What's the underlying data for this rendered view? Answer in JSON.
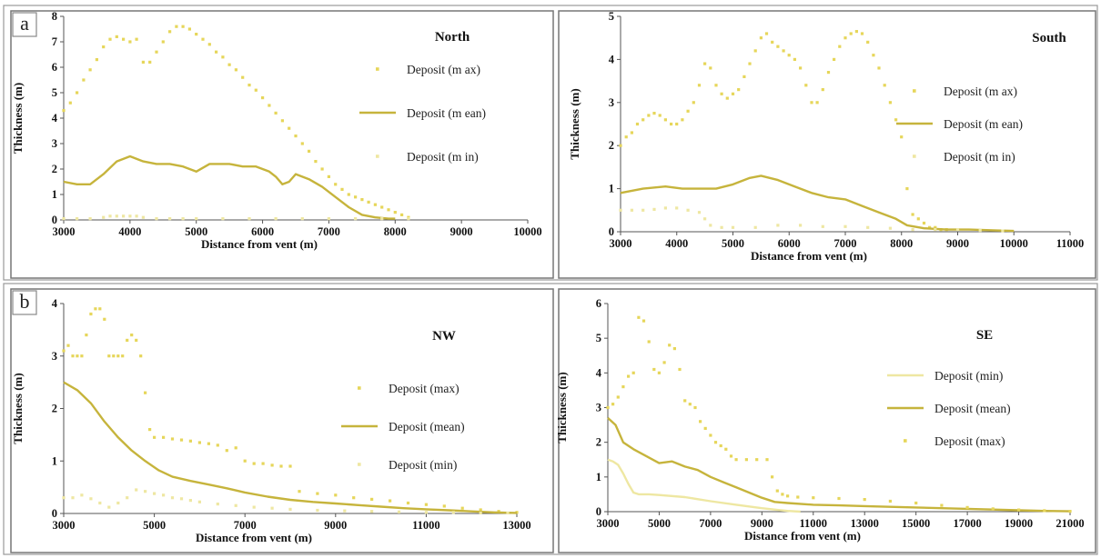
{
  "figure": {
    "labels": [
      "a",
      "b"
    ]
  },
  "colors": {
    "max": "#e6d65a",
    "mean": "#c6b43c",
    "min": "#eee7a2",
    "frame": "#777777"
  },
  "chart_data": [
    {
      "type": "line",
      "title": "North",
      "xlabel": "Distance from vent (m)",
      "ylabel": "Thickness (m)",
      "xlim": [
        3000,
        10000
      ],
      "ylim": [
        0,
        8
      ],
      "xticks": [
        3000,
        4000,
        5000,
        6000,
        7000,
        8000,
        9000,
        10000
      ],
      "yticks": [
        0,
        1,
        2,
        3,
        4,
        5,
        6,
        7,
        8
      ],
      "grid": false,
      "legend": "right",
      "series": [
        {
          "name": "Deposit (m ax)",
          "style": "dots",
          "key": "max",
          "x": [
            3000,
            3100,
            3200,
            3300,
            3400,
            3500,
            3600,
            3700,
            3800,
            3900,
            4000,
            4100,
            4200,
            4300,
            4400,
            4500,
            4600,
            4700,
            4800,
            4900,
            5000,
            5100,
            5200,
            5300,
            5400,
            5500,
            5600,
            5700,
            5800,
            5900,
            6000,
            6100,
            6200,
            6300,
            6400,
            6500,
            6600,
            6700,
            6800,
            6900,
            7000,
            7100,
            7200,
            7300,
            7400,
            7500,
            7600,
            7700,
            7800,
            7900,
            8000,
            8100,
            8200
          ],
          "y": [
            4.3,
            4.6,
            5.0,
            5.5,
            5.9,
            6.3,
            6.8,
            7.1,
            7.2,
            7.1,
            7.0,
            7.1,
            6.2,
            6.2,
            6.6,
            7.0,
            7.4,
            7.6,
            7.6,
            7.5,
            7.3,
            7.1,
            6.9,
            6.6,
            6.4,
            6.1,
            5.9,
            5.6,
            5.3,
            5.1,
            4.8,
            4.5,
            4.2,
            3.9,
            3.6,
            3.3,
            3.0,
            2.7,
            2.3,
            2.0,
            1.7,
            1.4,
            1.2,
            1.0,
            0.9,
            0.8,
            0.7,
            0.6,
            0.5,
            0.4,
            0.3,
            0.2,
            0.1
          ]
        },
        {
          "name": "Deposit (m ean)",
          "style": "line",
          "key": "mean",
          "x": [
            3000,
            3200,
            3400,
            3600,
            3800,
            4000,
            4200,
            4400,
            4600,
            4800,
            5000,
            5200,
            5300,
            5500,
            5700,
            5900,
            6100,
            6200,
            6300,
            6400,
            6500,
            6700,
            6900,
            7100,
            7300,
            7500,
            7700,
            7900,
            8000
          ],
          "y": [
            1.5,
            1.4,
            1.4,
            1.8,
            2.3,
            2.5,
            2.3,
            2.2,
            2.2,
            2.1,
            1.9,
            2.2,
            2.2,
            2.2,
            2.1,
            2.1,
            1.9,
            1.7,
            1.4,
            1.5,
            1.8,
            1.6,
            1.3,
            0.9,
            0.5,
            0.2,
            0.1,
            0.05,
            0.05
          ]
        },
        {
          "name": "Deposit (m in)",
          "style": "dots",
          "key": "min",
          "x": [
            3000,
            3200,
            3400,
            3600,
            3700,
            3800,
            3900,
            4000,
            4100,
            4200,
            4400,
            4600,
            4800,
            5000,
            5400,
            5800,
            6200,
            6600,
            7000,
            7400,
            7800,
            8200
          ],
          "y": [
            0.05,
            0.05,
            0.05,
            0.1,
            0.15,
            0.15,
            0.15,
            0.15,
            0.15,
            0.1,
            0.05,
            0.05,
            0.05,
            0.05,
            0.05,
            0.05,
            0.05,
            0.05,
            0.05,
            0.05,
            0.05,
            0.05
          ]
        }
      ]
    },
    {
      "type": "line",
      "title": "South",
      "xlabel": "Distance from vent (m)",
      "ylabel": "Thickness (m)",
      "xlim": [
        3000,
        11000
      ],
      "ylim": [
        0,
        5
      ],
      "xticks": [
        3000,
        4000,
        5000,
        6000,
        7000,
        8000,
        9000,
        10000,
        11000
      ],
      "yticks": [
        0,
        1,
        2,
        3,
        4,
        5
      ],
      "grid": false,
      "legend": "right",
      "series": [
        {
          "name": "Deposit (m ax)",
          "style": "dots",
          "key": "max",
          "x": [
            3000,
            3100,
            3200,
            3300,
            3400,
            3500,
            3600,
            3700,
            3800,
            3900,
            4000,
            4100,
            4200,
            4300,
            4400,
            4500,
            4600,
            4700,
            4800,
            4900,
            5000,
            5100,
            5200,
            5300,
            5400,
            5500,
            5600,
            5700,
            5800,
            5900,
            6000,
            6100,
            6200,
            6300,
            6400,
            6500,
            6600,
            6700,
            6800,
            6900,
            7000,
            7100,
            7200,
            7300,
            7400,
            7500,
            7600,
            7700,
            7800,
            7900,
            8000,
            8100,
            8200,
            8300,
            8400,
            8500,
            8600,
            8700,
            8800
          ],
          "y": [
            2.0,
            2.2,
            2.3,
            2.5,
            2.6,
            2.7,
            2.75,
            2.7,
            2.6,
            2.5,
            2.5,
            2.6,
            2.8,
            3.0,
            3.4,
            3.9,
            3.8,
            3.4,
            3.2,
            3.1,
            3.2,
            3.3,
            3.6,
            3.9,
            4.2,
            4.5,
            4.6,
            4.4,
            4.3,
            4.2,
            4.1,
            4.0,
            3.8,
            3.4,
            3.0,
            3.0,
            3.3,
            3.7,
            4.0,
            4.3,
            4.5,
            4.6,
            4.65,
            4.6,
            4.4,
            4.1,
            3.8,
            3.4,
            3.0,
            2.6,
            2.2,
            1.0,
            0.4,
            0.3,
            0.2,
            0.1,
            0.1,
            0.05,
            0.05
          ]
        },
        {
          "name": "Deposit (m ean)",
          "style": "line",
          "key": "mean",
          "x": [
            3000,
            3400,
            3800,
            4100,
            4400,
            4700,
            5000,
            5300,
            5500,
            5800,
            6100,
            6400,
            6700,
            7000,
            7300,
            7600,
            7900,
            8100,
            8400,
            8800,
            9200,
            9700,
            10000
          ],
          "y": [
            0.9,
            1.0,
            1.05,
            1.0,
            1.0,
            1.0,
            1.1,
            1.25,
            1.3,
            1.2,
            1.05,
            0.9,
            0.8,
            0.75,
            0.6,
            0.45,
            0.3,
            0.15,
            0.08,
            0.05,
            0.05,
            0.03,
            0.02
          ]
        },
        {
          "name": "Deposit (m in)",
          "style": "dots",
          "key": "min",
          "x": [
            3000,
            3200,
            3400,
            3600,
            3800,
            4000,
            4200,
            4400,
            4500,
            4600,
            4800,
            5000,
            5400,
            5800,
            6200,
            6600,
            7000,
            7400,
            7800,
            8200,
            8600,
            9000,
            9400,
            9800
          ],
          "y": [
            0.5,
            0.5,
            0.5,
            0.52,
            0.55,
            0.55,
            0.5,
            0.45,
            0.3,
            0.15,
            0.1,
            0.1,
            0.1,
            0.15,
            0.15,
            0.12,
            0.12,
            0.1,
            0.08,
            0.05,
            0.05,
            0.05,
            0.03,
            0.02
          ]
        }
      ]
    },
    {
      "type": "line",
      "title": "NW",
      "xlabel": "Distance from vent (m)",
      "ylabel": "Thickness (m)",
      "xlim": [
        3000,
        13000
      ],
      "ylim": [
        0,
        4
      ],
      "xticks": [
        3000,
        5000,
        7000,
        9000,
        11000,
        13000
      ],
      "yticks": [
        0,
        1,
        2,
        3,
        4
      ],
      "grid": false,
      "legend": "right",
      "series": [
        {
          "name": "Deposit (max)",
          "style": "dots",
          "key": "max",
          "x": [
            3000,
            3100,
            3200,
            3300,
            3400,
            3500,
            3600,
            3700,
            3800,
            3900,
            4000,
            4100,
            4200,
            4300,
            4400,
            4500,
            4600,
            4700,
            4800,
            4900,
            5000,
            5200,
            5400,
            5600,
            5800,
            6000,
            6200,
            6400,
            6600,
            6800,
            7000,
            7200,
            7400,
            7600,
            7800,
            8000,
            8200,
            8600,
            9000,
            9400,
            9800,
            10200,
            10600,
            11000,
            11400,
            11800,
            12200,
            12600,
            13000
          ],
          "y": [
            3.1,
            3.2,
            3.0,
            3.0,
            3.0,
            3.4,
            3.8,
            3.9,
            3.9,
            3.7,
            3.0,
            3.0,
            3.0,
            3.0,
            3.3,
            3.4,
            3.3,
            3.0,
            2.3,
            1.6,
            1.45,
            1.45,
            1.42,
            1.4,
            1.38,
            1.35,
            1.33,
            1.3,
            1.2,
            1.25,
            1.0,
            0.95,
            0.95,
            0.92,
            0.9,
            0.9,
            0.42,
            0.38,
            0.35,
            0.3,
            0.27,
            0.24,
            0.2,
            0.17,
            0.14,
            0.1,
            0.07,
            0.04,
            0.02
          ]
        },
        {
          "name": "Deposit (mean)",
          "style": "line",
          "key": "mean",
          "x": [
            3000,
            3300,
            3600,
            3900,
            4200,
            4500,
            4800,
            5100,
            5400,
            5800,
            6200,
            6600,
            7000,
            7500,
            8000,
            8500,
            9000,
            9500,
            10000,
            10500,
            11000,
            11500,
            12000,
            12500,
            13000
          ],
          "y": [
            2.5,
            2.35,
            2.1,
            1.75,
            1.45,
            1.2,
            1.0,
            0.82,
            0.7,
            0.62,
            0.55,
            0.48,
            0.4,
            0.32,
            0.26,
            0.22,
            0.19,
            0.16,
            0.13,
            0.1,
            0.08,
            0.06,
            0.04,
            0.02,
            0.01
          ]
        },
        {
          "name": "Deposit (min)",
          "style": "dots",
          "key": "min",
          "x": [
            3000,
            3200,
            3400,
            3600,
            3800,
            4000,
            4200,
            4400,
            4600,
            4800,
            5000,
            5200,
            5400,
            5600,
            5800,
            6000,
            6400,
            6800,
            7200,
            7600,
            8000,
            8600,
            9200,
            9800,
            10400,
            11000,
            11600,
            12200,
            12800
          ],
          "y": [
            0.3,
            0.3,
            0.35,
            0.28,
            0.2,
            0.12,
            0.2,
            0.3,
            0.45,
            0.42,
            0.38,
            0.35,
            0.3,
            0.28,
            0.25,
            0.22,
            0.18,
            0.15,
            0.12,
            0.1,
            0.08,
            0.06,
            0.05,
            0.04,
            0.03,
            0.02,
            0.02,
            0.01,
            0.01
          ]
        }
      ]
    },
    {
      "type": "line",
      "title": "SE",
      "xlabel": "Distance from vent (m)",
      "ylabel": "Thickness (m)",
      "xlim": [
        3000,
        21000
      ],
      "ylim": [
        0,
        6
      ],
      "xticks": [
        3000,
        5000,
        7000,
        9000,
        11000,
        13000,
        15000,
        17000,
        19000,
        21000
      ],
      "yticks": [
        0,
        1,
        2,
        3,
        4,
        5,
        6
      ],
      "grid": false,
      "legend": "right",
      "series": [
        {
          "name": "Deposit (min)",
          "style": "line",
          "key": "min",
          "x": [
            3000,
            3200,
            3400,
            3600,
            3800,
            4000,
            4200,
            4600,
            5000,
            6000,
            7000,
            8000,
            9000,
            9600,
            10000,
            10500
          ],
          "y": [
            1.5,
            1.45,
            1.35,
            1.1,
            0.8,
            0.55,
            0.5,
            0.5,
            0.48,
            0.42,
            0.3,
            0.2,
            0.1,
            0.05,
            0.02,
            0.0
          ]
        },
        {
          "name": "Deposit (mean)",
          "style": "line",
          "key": "mean",
          "x": [
            3000,
            3300,
            3600,
            4000,
            4500,
            5000,
            5500,
            6000,
            6500,
            7000,
            7500,
            8000,
            8500,
            9000,
            9500,
            10000,
            11000,
            12000,
            13000,
            14000,
            15000,
            16000,
            17000,
            18000,
            19000,
            20000,
            21000
          ],
          "y": [
            2.7,
            2.5,
            2.0,
            1.8,
            1.6,
            1.4,
            1.45,
            1.3,
            1.2,
            1.0,
            0.85,
            0.7,
            0.55,
            0.4,
            0.28,
            0.25,
            0.2,
            0.18,
            0.16,
            0.14,
            0.12,
            0.1,
            0.08,
            0.06,
            0.04,
            0.02,
            0.01
          ]
        },
        {
          "name": "Deposit (max)",
          "style": "dots",
          "key": "max",
          "x": [
            3000,
            3200,
            3400,
            3600,
            3800,
            4000,
            4200,
            4400,
            4600,
            4800,
            5000,
            5200,
            5400,
            5600,
            5800,
            6000,
            6200,
            6400,
            6600,
            6800,
            7000,
            7200,
            7400,
            7600,
            7800,
            8000,
            8400,
            8800,
            9200,
            9400,
            9600,
            9800,
            10000,
            10400,
            11000,
            12000,
            13000,
            14000,
            15000,
            16000,
            17000,
            18000,
            19000,
            20000,
            21000
          ],
          "y": [
            3.0,
            3.1,
            3.3,
            3.6,
            3.9,
            4.0,
            5.6,
            5.5,
            4.9,
            4.1,
            4.0,
            4.3,
            4.8,
            4.7,
            4.1,
            3.2,
            3.1,
            3.0,
            2.6,
            2.4,
            2.2,
            2.0,
            1.9,
            1.8,
            1.6,
            1.5,
            1.5,
            1.5,
            1.5,
            1.0,
            0.6,
            0.5,
            0.45,
            0.42,
            0.4,
            0.38,
            0.35,
            0.3,
            0.25,
            0.18,
            0.12,
            0.08,
            0.05,
            0.03,
            0.01
          ]
        }
      ]
    }
  ]
}
